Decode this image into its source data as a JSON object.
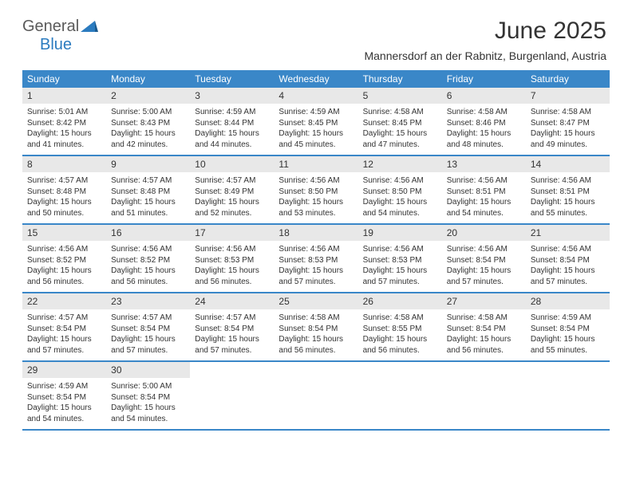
{
  "logo": {
    "part1": "General",
    "part2": "Blue"
  },
  "header": {
    "title": "June 2025",
    "location": "Mannersdorf an der Rabnitz, Burgenland, Austria"
  },
  "colors": {
    "header_bg": "#3a87c8",
    "header_text": "#ffffff",
    "daynum_bg": "#e8e8e8",
    "border": "#3a87c8",
    "text": "#333333",
    "logo_gray": "#5a5a5a",
    "logo_blue": "#2b7bbf"
  },
  "day_labels": [
    "Sunday",
    "Monday",
    "Tuesday",
    "Wednesday",
    "Thursday",
    "Friday",
    "Saturday"
  ],
  "weeks": [
    [
      {
        "n": "1",
        "sr": "5:01 AM",
        "ss": "8:42 PM",
        "dl": "15 hours and 41 minutes."
      },
      {
        "n": "2",
        "sr": "5:00 AM",
        "ss": "8:43 PM",
        "dl": "15 hours and 42 minutes."
      },
      {
        "n": "3",
        "sr": "4:59 AM",
        "ss": "8:44 PM",
        "dl": "15 hours and 44 minutes."
      },
      {
        "n": "4",
        "sr": "4:59 AM",
        "ss": "8:45 PM",
        "dl": "15 hours and 45 minutes."
      },
      {
        "n": "5",
        "sr": "4:58 AM",
        "ss": "8:45 PM",
        "dl": "15 hours and 47 minutes."
      },
      {
        "n": "6",
        "sr": "4:58 AM",
        "ss": "8:46 PM",
        "dl": "15 hours and 48 minutes."
      },
      {
        "n": "7",
        "sr": "4:58 AM",
        "ss": "8:47 PM",
        "dl": "15 hours and 49 minutes."
      }
    ],
    [
      {
        "n": "8",
        "sr": "4:57 AM",
        "ss": "8:48 PM",
        "dl": "15 hours and 50 minutes."
      },
      {
        "n": "9",
        "sr": "4:57 AM",
        "ss": "8:48 PM",
        "dl": "15 hours and 51 minutes."
      },
      {
        "n": "10",
        "sr": "4:57 AM",
        "ss": "8:49 PM",
        "dl": "15 hours and 52 minutes."
      },
      {
        "n": "11",
        "sr": "4:56 AM",
        "ss": "8:50 PM",
        "dl": "15 hours and 53 minutes."
      },
      {
        "n": "12",
        "sr": "4:56 AM",
        "ss": "8:50 PM",
        "dl": "15 hours and 54 minutes."
      },
      {
        "n": "13",
        "sr": "4:56 AM",
        "ss": "8:51 PM",
        "dl": "15 hours and 54 minutes."
      },
      {
        "n": "14",
        "sr": "4:56 AM",
        "ss": "8:51 PM",
        "dl": "15 hours and 55 minutes."
      }
    ],
    [
      {
        "n": "15",
        "sr": "4:56 AM",
        "ss": "8:52 PM",
        "dl": "15 hours and 56 minutes."
      },
      {
        "n": "16",
        "sr": "4:56 AM",
        "ss": "8:52 PM",
        "dl": "15 hours and 56 minutes."
      },
      {
        "n": "17",
        "sr": "4:56 AM",
        "ss": "8:53 PM",
        "dl": "15 hours and 56 minutes."
      },
      {
        "n": "18",
        "sr": "4:56 AM",
        "ss": "8:53 PM",
        "dl": "15 hours and 57 minutes."
      },
      {
        "n": "19",
        "sr": "4:56 AM",
        "ss": "8:53 PM",
        "dl": "15 hours and 57 minutes."
      },
      {
        "n": "20",
        "sr": "4:56 AM",
        "ss": "8:54 PM",
        "dl": "15 hours and 57 minutes."
      },
      {
        "n": "21",
        "sr": "4:56 AM",
        "ss": "8:54 PM",
        "dl": "15 hours and 57 minutes."
      }
    ],
    [
      {
        "n": "22",
        "sr": "4:57 AM",
        "ss": "8:54 PM",
        "dl": "15 hours and 57 minutes."
      },
      {
        "n": "23",
        "sr": "4:57 AM",
        "ss": "8:54 PM",
        "dl": "15 hours and 57 minutes."
      },
      {
        "n": "24",
        "sr": "4:57 AM",
        "ss": "8:54 PM",
        "dl": "15 hours and 57 minutes."
      },
      {
        "n": "25",
        "sr": "4:58 AM",
        "ss": "8:54 PM",
        "dl": "15 hours and 56 minutes."
      },
      {
        "n": "26",
        "sr": "4:58 AM",
        "ss": "8:55 PM",
        "dl": "15 hours and 56 minutes."
      },
      {
        "n": "27",
        "sr": "4:58 AM",
        "ss": "8:54 PM",
        "dl": "15 hours and 56 minutes."
      },
      {
        "n": "28",
        "sr": "4:59 AM",
        "ss": "8:54 PM",
        "dl": "15 hours and 55 minutes."
      }
    ],
    [
      {
        "n": "29",
        "sr": "4:59 AM",
        "ss": "8:54 PM",
        "dl": "15 hours and 54 minutes."
      },
      {
        "n": "30",
        "sr": "5:00 AM",
        "ss": "8:54 PM",
        "dl": "15 hours and 54 minutes."
      },
      null,
      null,
      null,
      null,
      null
    ]
  ],
  "labels": {
    "sunrise": "Sunrise: ",
    "sunset": "Sunset: ",
    "daylight": "Daylight: "
  }
}
